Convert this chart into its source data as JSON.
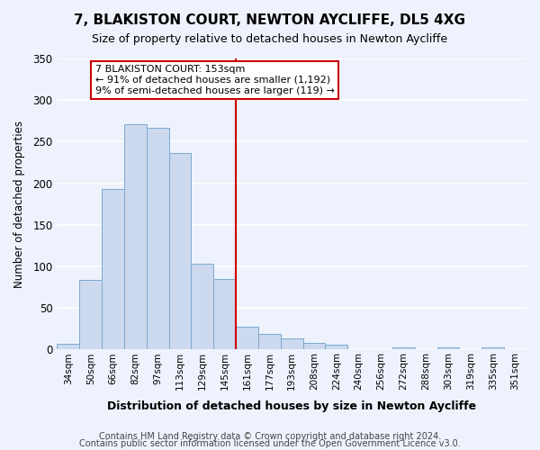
{
  "title": "7, BLAKISTON COURT, NEWTON AYCLIFFE, DL5 4XG",
  "subtitle": "Size of property relative to detached houses in Newton Aycliffe",
  "xlabel": "Distribution of detached houses by size in Newton Aycliffe",
  "ylabel": "Number of detached properties",
  "footnote1": "Contains HM Land Registry data © Crown copyright and database right 2024.",
  "footnote2": "Contains public sector information licensed under the Open Government Licence v3.0.",
  "bar_labels": [
    "34sqm",
    "50sqm",
    "66sqm",
    "82sqm",
    "97sqm",
    "113sqm",
    "129sqm",
    "145sqm",
    "161sqm",
    "177sqm",
    "193sqm",
    "208sqm",
    "224sqm",
    "240sqm",
    "256sqm",
    "272sqm",
    "288sqm",
    "303sqm",
    "319sqm",
    "335sqm",
    "351sqm"
  ],
  "bar_values": [
    7,
    84,
    193,
    271,
    267,
    236,
    103,
    85,
    28,
    19,
    14,
    8,
    6,
    0,
    0,
    3,
    0,
    3,
    0,
    3,
    0
  ],
  "bar_color": "#cdd9ee",
  "bar_edge_color": "#7aaad0",
  "vline_x_idx": 8,
  "vline_color": "#cc0000",
  "ylim": [
    0,
    350
  ],
  "yticks": [
    0,
    50,
    100,
    150,
    200,
    250,
    300,
    350
  ],
  "annotation_title": "7 BLAKISTON COURT: 153sqm",
  "annotation_line1": "← 91% of detached houses are smaller (1,192)",
  "annotation_line2": "9% of semi-detached houses are larger (119) →",
  "annotation_box_color": "#cc0000",
  "bg_color": "#eef2fc",
  "grid_color": "#ffffff"
}
